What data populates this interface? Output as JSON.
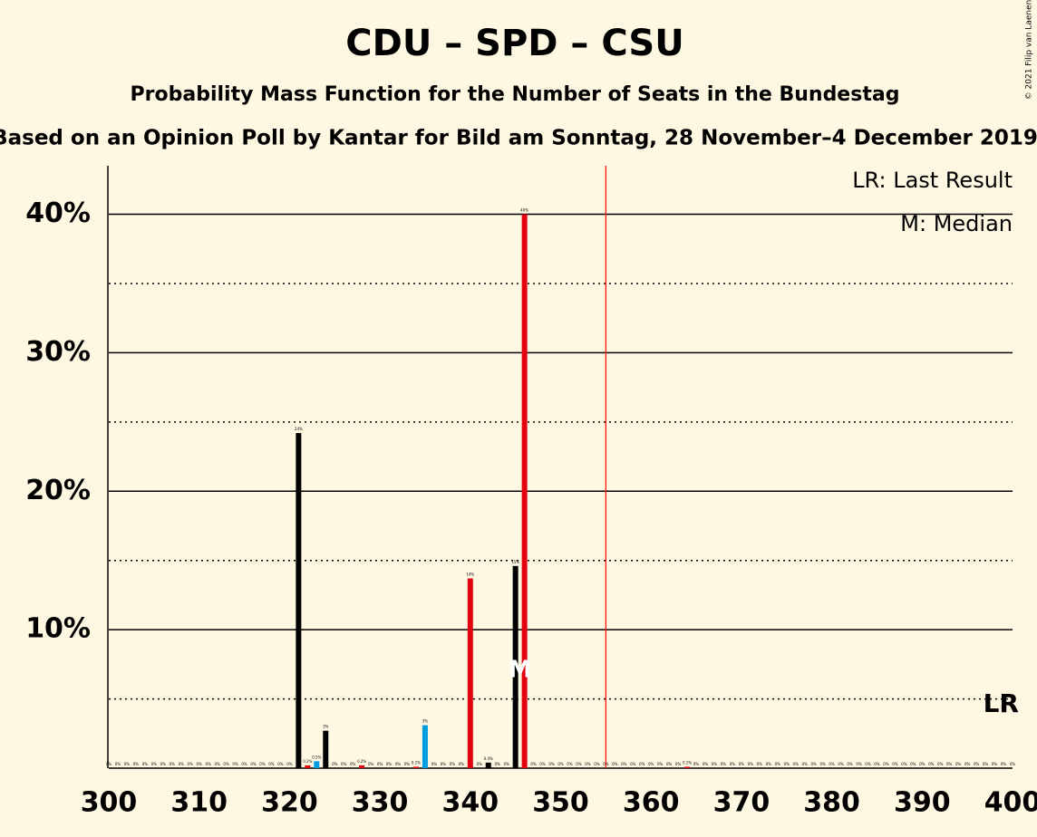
{
  "chart_data": {
    "type": "bar",
    "title": "CDU – SPD – CSU",
    "subtitle": "Probability Mass Function for the Number of Seats in the Bundestag",
    "caption": "Based on an Opinion Poll by Kantar for Bild am Sonntag, 28 November–4 December 2019",
    "copyright": "© 2021 Filip van Laenen",
    "legend": [
      "LR: Last Result",
      "M: Median"
    ],
    "last_result": 355,
    "last_result_label": "LR",
    "last_result_color": "#ff0000",
    "median": 345,
    "median_label": "M",
    "xlim": [
      300,
      400
    ],
    "xticks": [
      300,
      310,
      320,
      330,
      340,
      350,
      360,
      370,
      380,
      390,
      400
    ],
    "ylim": [
      0,
      43.5
    ],
    "yticks": [
      {
        "value": 10,
        "label": "10%"
      },
      {
        "value": 20,
        "label": "20%"
      },
      {
        "value": 30,
        "label": "30%"
      },
      {
        "value": 40,
        "label": "40%"
      }
    ],
    "minor_yticks": [
      5,
      15,
      25,
      35
    ],
    "series": [
      {
        "color": "#000000",
        "x": [
          300,
          303,
          306,
          309,
          312,
          315,
          318,
          321,
          324,
          327,
          330,
          333,
          336,
          339,
          342,
          345,
          348,
          351,
          354,
          357,
          360,
          363,
          366,
          369,
          372,
          375,
          378,
          381,
          384,
          387,
          390,
          393,
          396,
          399
        ],
        "values": [
          0,
          0,
          0,
          0,
          0,
          0,
          0,
          24.2,
          2.7,
          0,
          0,
          0,
          0,
          0,
          0.4,
          14.6,
          0,
          0,
          0,
          0,
          0,
          0,
          0,
          0,
          0,
          0,
          0,
          0,
          0,
          0,
          0,
          0,
          0,
          0
        ],
        "value_labels": [
          "0%",
          "0%",
          "0%",
          "0%",
          "0%",
          "0%",
          "0%",
          "24%",
          "3%",
          "0%",
          "0%",
          "0%",
          "0%",
          "0%",
          "0.4%",
          "15%",
          "0%",
          "0%",
          "0%",
          "0%",
          "0%",
          "0%",
          "0%",
          "0%",
          "0%",
          "0%",
          "0%",
          "0%",
          "0%",
          "0%",
          "0%",
          "0%",
          "0%",
          "0%"
        ]
      },
      {
        "color": "#e3000f",
        "x": [
          301,
          304,
          307,
          310,
          313,
          316,
          319,
          322,
          325,
          328,
          331,
          334,
          337,
          340,
          343,
          346,
          349,
          352,
          355,
          358,
          361,
          364,
          367,
          370,
          373,
          376,
          379,
          382,
          385,
          388,
          391,
          394,
          397,
          400
        ],
        "values": [
          0,
          0,
          0,
          0,
          0,
          0,
          0,
          0.2,
          0,
          0.2,
          0,
          0.1,
          0,
          13.7,
          0,
          40,
          0,
          0,
          0,
          0,
          0,
          0.1,
          0,
          0,
          0,
          0,
          0,
          0,
          0,
          0,
          0,
          0,
          0,
          0
        ],
        "value_labels": [
          "0%",
          "0%",
          "0%",
          "0%",
          "0%",
          "0%",
          "0%",
          "0.2%",
          "0%",
          "0.2%",
          "0%",
          "0.1%",
          "0%",
          "14%",
          "0%",
          "40%",
          "0%",
          "0%",
          "0%",
          "0%",
          "0%",
          "0.1%",
          "0%",
          "0%",
          "0%",
          "0%",
          "0%",
          "0%",
          "0%",
          "0%",
          "0%",
          "0%",
          "0%",
          "0%"
        ]
      },
      {
        "color": "#009ee0",
        "x": [
          302,
          305,
          308,
          311,
          314,
          317,
          320,
          323,
          326,
          329,
          332,
          335,
          338,
          341,
          344,
          347,
          350,
          353,
          356,
          359,
          362,
          365,
          368,
          371,
          374,
          377,
          380,
          383,
          386,
          389,
          392,
          395,
          398
        ],
        "values": [
          0,
          0,
          0,
          0,
          0,
          0,
          0,
          0.5,
          0,
          0,
          0,
          3.1,
          0,
          0,
          0,
          0,
          0,
          0,
          0,
          0,
          0,
          0,
          0,
          0,
          0,
          0,
          0,
          0,
          0,
          0,
          0,
          0,
          0
        ],
        "value_labels": [
          "0%",
          "0%",
          "0%",
          "0%",
          "0%",
          "0%",
          "0%",
          "0.5%",
          "0%",
          "0%",
          "0%",
          "3%",
          "0%",
          "0%",
          "0%",
          "0%",
          "0%",
          "0%",
          "0%",
          "0%",
          "0%",
          "0%",
          "0%",
          "0%",
          "0%",
          "0%",
          "0%",
          "0%",
          "0%",
          "0%",
          "0%",
          "0%",
          "0%"
        ]
      }
    ]
  }
}
